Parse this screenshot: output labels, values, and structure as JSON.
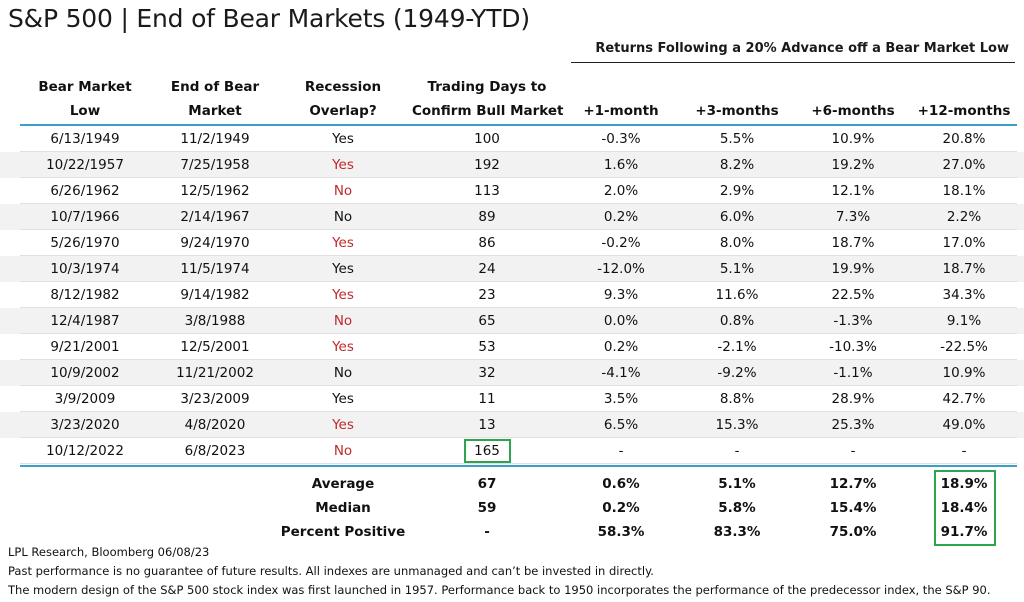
{
  "title": "S&P 500 | End of Bear Markets (1949-YTD)",
  "subtitle": "Returns Following a 20% Advance off a Bear Market Low",
  "colors": {
    "accent_line": "#3aa0c8",
    "red_text": "#c0292b",
    "highlight_box": "#2ea44f",
    "shade": "#f2f2f2"
  },
  "chart_data": {
    "type": "table",
    "columns": [
      [
        "Bear Market",
        "Low"
      ],
      [
        "End of Bear",
        "Market"
      ],
      [
        "Recession",
        "Overlap?"
      ],
      [
        "Trading Days to",
        "Confirm Bull Market"
      ],
      [
        "",
        "+1-month"
      ],
      [
        "",
        "+3-months"
      ],
      [
        "",
        "+6-months"
      ],
      [
        "",
        "+12-months"
      ]
    ],
    "rows": [
      {
        "low": "6/13/1949",
        "end": "11/2/1949",
        "recession": "Yes",
        "recession_red": false,
        "days": "100",
        "m1": "-0.3%",
        "m3": "5.5%",
        "m6": "10.9%",
        "m12": "20.8%"
      },
      {
        "low": "10/22/1957",
        "end": "7/25/1958",
        "recession": "Yes",
        "recession_red": true,
        "days": "192",
        "m1": "1.6%",
        "m3": "8.2%",
        "m6": "19.2%",
        "m12": "27.0%"
      },
      {
        "low": "6/26/1962",
        "end": "12/5/1962",
        "recession": "No",
        "recession_red": true,
        "days": "113",
        "m1": "2.0%",
        "m3": "2.9%",
        "m6": "12.1%",
        "m12": "18.1%"
      },
      {
        "low": "10/7/1966",
        "end": "2/14/1967",
        "recession": "No",
        "recession_red": false,
        "days": "89",
        "m1": "0.2%",
        "m3": "6.0%",
        "m6": "7.3%",
        "m12": "2.2%"
      },
      {
        "low": "5/26/1970",
        "end": "9/24/1970",
        "recession": "Yes",
        "recession_red": true,
        "days": "86",
        "m1": "-0.2%",
        "m3": "8.0%",
        "m6": "18.7%",
        "m12": "17.0%"
      },
      {
        "low": "10/3/1974",
        "end": "11/5/1974",
        "recession": "Yes",
        "recession_red": false,
        "days": "24",
        "m1": "-12.0%",
        "m3": "5.1%",
        "m6": "19.9%",
        "m12": "18.7%"
      },
      {
        "low": "8/12/1982",
        "end": "9/14/1982",
        "recession": "Yes",
        "recession_red": true,
        "days": "23",
        "m1": "9.3%",
        "m3": "11.6%",
        "m6": "22.5%",
        "m12": "34.3%"
      },
      {
        "low": "12/4/1987",
        "end": "3/8/1988",
        "recession": "No",
        "recession_red": true,
        "days": "65",
        "m1": "0.0%",
        "m3": "0.8%",
        "m6": "-1.3%",
        "m12": "9.1%"
      },
      {
        "low": "9/21/2001",
        "end": "12/5/2001",
        "recession": "Yes",
        "recession_red": true,
        "days": "53",
        "m1": "0.2%",
        "m3": "-2.1%",
        "m6": "-10.3%",
        "m12": "-22.5%"
      },
      {
        "low": "10/9/2002",
        "end": "11/21/2002",
        "recession": "No",
        "recession_red": false,
        "days": "32",
        "m1": "-4.1%",
        "m3": "-9.2%",
        "m6": "-1.1%",
        "m12": "10.9%"
      },
      {
        "low": "3/9/2009",
        "end": "3/23/2009",
        "recession": "Yes",
        "recession_red": false,
        "days": "11",
        "m1": "3.5%",
        "m3": "8.8%",
        "m6": "28.9%",
        "m12": "42.7%"
      },
      {
        "low": "3/23/2020",
        "end": "4/8/2020",
        "recession": "Yes",
        "recession_red": true,
        "days": "13",
        "m1": "6.5%",
        "m3": "15.3%",
        "m6": "25.3%",
        "m12": "49.0%"
      },
      {
        "low": "10/12/2022",
        "end": "6/8/2023",
        "recession": "No",
        "recession_red": true,
        "days": "165",
        "m1": "-",
        "m3": "-",
        "m6": "-",
        "m12": "-"
      }
    ],
    "summary": [
      {
        "label": "Average",
        "days": "67",
        "m1": "0.6%",
        "m3": "5.1%",
        "m6": "12.7%",
        "m12": "18.9%"
      },
      {
        "label": "Median",
        "days": "59",
        "m1": "0.2%",
        "m3": "5.8%",
        "m6": "15.4%",
        "m12": "18.4%"
      },
      {
        "label": "Percent Positive",
        "days": "-",
        "m1": "58.3%",
        "m3": "83.3%",
        "m6": "75.0%",
        "m12": "91.7%"
      }
    ]
  },
  "footer": [
    "LPL Research, Bloomberg 06/08/23",
    "Past performance is no guarantee of future results. All indexes are unmanaged and can’t be invested in directly.",
    "The modern design of the S&P 500 stock index was first launched in 1957. Performance back to 1950 incorporates the performance of the predecessor index, the S&P 90."
  ]
}
